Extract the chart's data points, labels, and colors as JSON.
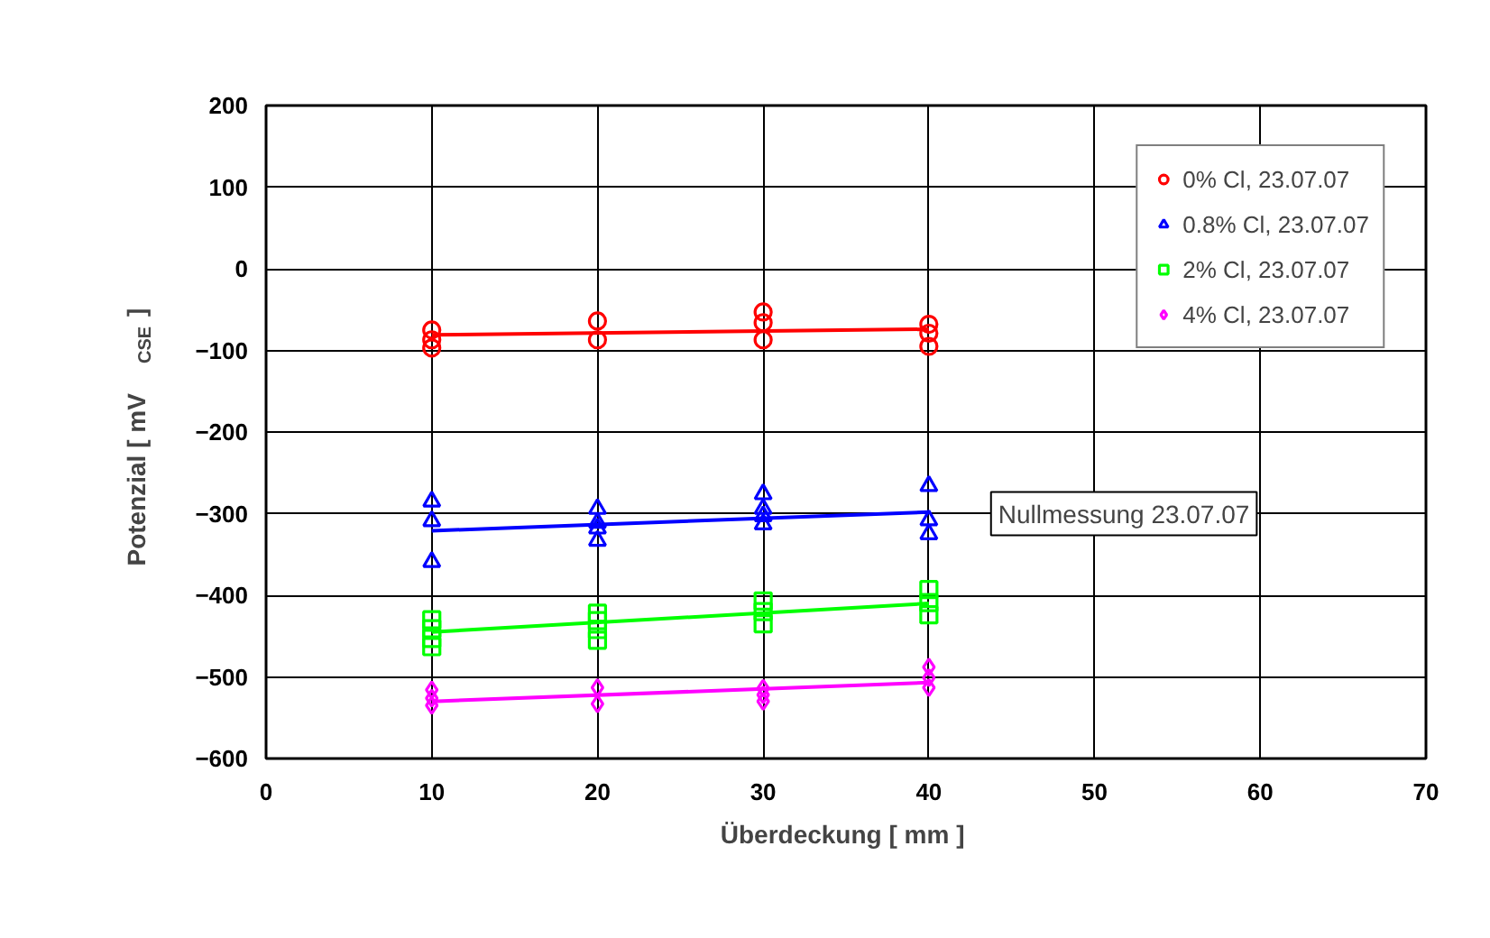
{
  "chart_data": {
    "type": "scatter",
    "xlabel": "Überdeckung  [ mm ]",
    "ylabel": "Potenzial [ mV$_{CSE}$ ]",
    "xlim": [
      0,
      70
    ],
    "xticks": [
      0,
      10,
      20,
      30,
      40,
      50,
      60,
      70
    ],
    "ylim": [
      -600,
      200
    ],
    "yticks": [
      -600,
      -500,
      -400,
      -300,
      -200,
      -100,
      0,
      100,
      200
    ],
    "grid": true,
    "legend": "top right",
    "annotations": [
      "Nullmessung 23.07.07"
    ],
    "series": [
      {
        "name": "0% Cl, 23.07.07",
        "color": "#ff0000",
        "marker": "circle",
        "x": [
          10,
          10,
          10,
          20,
          20,
          30,
          30,
          30,
          40,
          40,
          40
        ],
        "values": [
          -75,
          -87,
          -97,
          -64,
          -87,
          -53,
          -66,
          -87,
          -68,
          -79,
          -95
        ]
      },
      {
        "name": "0.8% Cl, 23.07.07",
        "color": "#0000ff",
        "marker": "triangle",
        "x": [
          10,
          10,
          10,
          20,
          20,
          20,
          20,
          30,
          30,
          30,
          30,
          40,
          40,
          40
        ],
        "values": [
          -285,
          -309,
          -359,
          -294,
          -311,
          -318,
          -333,
          -276,
          -294,
          -303,
          -313,
          -266,
          -308,
          -325
        ]
      },
      {
        "name": "2% Cl, 23.07.07",
        "color": "#00ff00",
        "marker": "square",
        "x": [
          10,
          10,
          10,
          10,
          20,
          20,
          20,
          20,
          30,
          30,
          30,
          40,
          40,
          40
        ],
        "values": [
          -430,
          -441,
          -453,
          -463,
          -422,
          -431,
          -442,
          -455,
          -407,
          -420,
          -435,
          -393,
          -409,
          -424
        ]
      },
      {
        "name": "4% Cl, 23.07.07",
        "color": "#ff00ff",
        "marker": "diamond",
        "x": [
          10,
          10,
          10,
          20,
          20,
          30,
          30,
          30,
          40,
          40,
          40
        ],
        "values": [
          -516,
          -526,
          -535,
          -513,
          -533,
          -514,
          -522,
          -530,
          -488,
          -501,
          -513
        ]
      },
      {
        "type": "line",
        "color": "#ff0000",
        "x": [
          10,
          40
        ],
        "values": [
          -81,
          -74
        ]
      },
      {
        "type": "line",
        "color": "#0000ff",
        "x": [
          10,
          40
        ],
        "values": [
          -321,
          -298
        ]
      },
      {
        "type": "line",
        "color": "#00ff00",
        "x": [
          10,
          40
        ],
        "values": [
          -445,
          -410
        ]
      },
      {
        "type": "line",
        "color": "#ff00ff",
        "x": [
          10,
          40
        ],
        "values": [
          -530,
          -507
        ]
      }
    ]
  }
}
